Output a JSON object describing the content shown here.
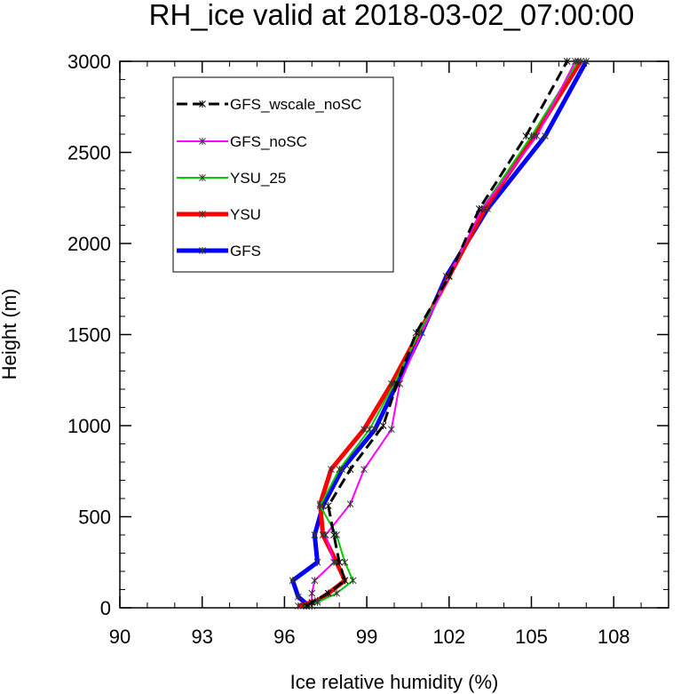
{
  "chart_data": {
    "type": "line",
    "title": "RH_ice valid at 2018-03-02_07:00:00",
    "xlabel": "Ice relative humidity (%)",
    "ylabel": "Height (m)",
    "xlim": [
      90,
      110
    ],
    "ylim": [
      0,
      3000
    ],
    "xticks": [
      90,
      93,
      96,
      99,
      102,
      105,
      108
    ],
    "yticks": [
      0,
      500,
      1000,
      1500,
      2000,
      2500,
      3000
    ],
    "grid": false,
    "legend_position": "top-left",
    "series": [
      {
        "name": "GFS_wscale_noSC",
        "color": "#000000",
        "dash": "dashed",
        "width": 3,
        "points": [
          [
            96.8,
            10
          ],
          [
            97.0,
            30
          ],
          [
            97.6,
            80
          ],
          [
            98.2,
            150
          ],
          [
            98.0,
            250
          ],
          [
            97.8,
            400
          ],
          [
            97.6,
            560
          ],
          [
            98.4,
            760
          ],
          [
            99.6,
            1000
          ],
          [
            100.1,
            1230
          ],
          [
            100.8,
            1510
          ],
          [
            102.0,
            1820
          ],
          [
            103.1,
            2190
          ],
          [
            104.8,
            2590
          ],
          [
            106.3,
            3000
          ]
        ]
      },
      {
        "name": "GFS_noSC",
        "color": "#ff00ff",
        "dash": "solid",
        "width": 2,
        "points": [
          [
            97.0,
            10
          ],
          [
            97.0,
            80
          ],
          [
            97.1,
            150
          ],
          [
            97.8,
            250
          ],
          [
            97.5,
            400
          ],
          [
            98.4,
            570
          ],
          [
            98.9,
            760
          ],
          [
            99.9,
            980
          ],
          [
            100.2,
            1230
          ],
          [
            101.0,
            1510
          ],
          [
            102.0,
            1820
          ],
          [
            103.2,
            2190
          ],
          [
            105.2,
            2590
          ],
          [
            106.6,
            3000
          ]
        ]
      },
      {
        "name": "YSU_25",
        "color": "#00cc00",
        "dash": "solid",
        "width": 2,
        "points": [
          [
            96.7,
            10
          ],
          [
            97.2,
            30
          ],
          [
            97.9,
            80
          ],
          [
            98.5,
            150
          ],
          [
            98.2,
            250
          ],
          [
            97.9,
            400
          ],
          [
            97.3,
            560
          ],
          [
            98.0,
            760
          ],
          [
            99.1,
            980
          ],
          [
            100.0,
            1230
          ],
          [
            100.9,
            1510
          ],
          [
            102.0,
            1820
          ],
          [
            103.2,
            2190
          ],
          [
            105.0,
            2590
          ],
          [
            106.7,
            3000
          ]
        ]
      },
      {
        "name": "YSU",
        "color": "#ff0000",
        "dash": "solid",
        "width": 5,
        "points": [
          [
            96.5,
            10
          ],
          [
            97.2,
            40
          ],
          [
            97.6,
            80
          ],
          [
            98.2,
            150
          ],
          [
            97.9,
            250
          ],
          [
            97.4,
            400
          ],
          [
            97.3,
            570
          ],
          [
            97.7,
            760
          ],
          [
            98.9,
            980
          ],
          [
            99.9,
            1230
          ],
          [
            100.9,
            1510
          ],
          [
            102.0,
            1820
          ],
          [
            103.3,
            2190
          ],
          [
            105.1,
            2590
          ],
          [
            106.8,
            3000
          ]
        ]
      },
      {
        "name": "GFS",
        "color": "#0000ff",
        "dash": "solid",
        "width": 5,
        "points": [
          [
            96.9,
            10
          ],
          [
            96.5,
            60
          ],
          [
            96.3,
            150
          ],
          [
            97.2,
            250
          ],
          [
            97.1,
            400
          ],
          [
            97.4,
            560
          ],
          [
            98.1,
            760
          ],
          [
            99.3,
            980
          ],
          [
            100.1,
            1230
          ],
          [
            101.0,
            1510
          ],
          [
            101.9,
            1820
          ],
          [
            103.4,
            2190
          ],
          [
            105.5,
            2590
          ],
          [
            107.0,
            3000
          ]
        ]
      }
    ]
  }
}
